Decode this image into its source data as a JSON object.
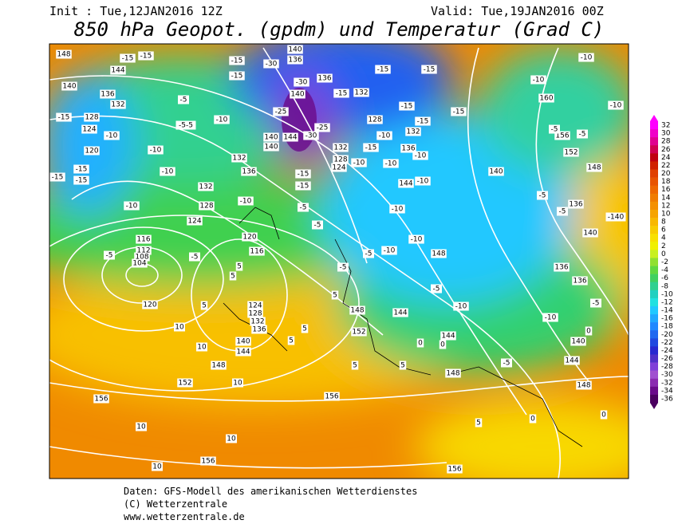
{
  "header": {
    "init": "Init : Tue,12JAN2016 12Z",
    "valid": "Valid: Tue,19JAN2016 00Z",
    "title": "850 hPa Geopot. (gpdm) und Temperatur (Grad C)"
  },
  "colorbar": {
    "ticks": [
      32,
      30,
      28,
      26,
      24,
      22,
      20,
      18,
      16,
      14,
      12,
      10,
      8,
      6,
      4,
      2,
      0,
      -2,
      -4,
      -6,
      -8,
      -10,
      -12,
      -14,
      -16,
      -18,
      -20,
      -22,
      -24,
      -26,
      -28,
      -30,
      -32,
      -34,
      -36
    ],
    "colors": [
      "#ff00ff",
      "#f000c8",
      "#e00090",
      "#d00050",
      "#c00010",
      "#d02000",
      "#e04000",
      "#e85400",
      "#ee6800",
      "#f07c00",
      "#f49000",
      "#f6a400",
      "#f8b800",
      "#f8cc00",
      "#f8e000",
      "#f0f000",
      "#c8f020",
      "#90e030",
      "#60d840",
      "#40d060",
      "#30d090",
      "#20d0c0",
      "#20e0e0",
      "#20c8ff",
      "#20a8ff",
      "#2088ff",
      "#2068f0",
      "#2048e0",
      "#2828d0",
      "#5030c8",
      "#8040d8",
      "#a050d0",
      "#8a2ab0",
      "#6a0a8a",
      "#4b0060"
    ]
  },
  "map_labels": [
    "148",
    "144",
    "140",
    "136",
    "132",
    "128",
    "124",
    "120",
    "116",
    "112",
    "108",
    "104",
    "120",
    "132",
    "128",
    "124",
    "120",
    "116",
    "124",
    "128",
    "132",
    "136",
    "140",
    "144",
    "148",
    "152",
    "156",
    "156",
    "156",
    "156",
    "152",
    "148",
    "144",
    "148",
    "140",
    "152",
    "156",
    "160",
    "148",
    "136",
    "140",
    "136",
    "136",
    "140",
    "144",
    "148",
    "148",
    "144",
    "140",
    "136",
    "136",
    "140",
    "132",
    "128",
    "132",
    "136",
    "132",
    "128",
    "124",
    "144",
    "132",
    "136",
    "144",
    "140",
    "140",
    "-15",
    "-15",
    "-15",
    "-15",
    "-5",
    "-5-5",
    "-10",
    "-15",
    "-10",
    "-10",
    "-10",
    "-15",
    "-15",
    "-15",
    "-10",
    "-5",
    "-5",
    "5",
    "5",
    "5",
    "10",
    "10",
    "10",
    "10",
    "10",
    "10",
    "-5",
    "-5",
    "5",
    "5",
    "5",
    "5",
    "5",
    "0",
    "0",
    "5",
    "-5",
    "0",
    "0",
    "0",
    "-5",
    "-10",
    "-10",
    "-5",
    "-10",
    "-10",
    "-10",
    "-10",
    "-10",
    "-10",
    "-10",
    "-15",
    "-15",
    "-15",
    "-15",
    "-15",
    "-15",
    "-15",
    "-15",
    "-5",
    "-5",
    "-10",
    "-15",
    "-10",
    "-5",
    "-5",
    "-5",
    "-5",
    "-10",
    "-10",
    "-10",
    "-140",
    "-25",
    "-25",
    "-30",
    "-30",
    "-30"
  ],
  "footer": {
    "line1": "Daten: GFS-Modell des amerikanischen Wetterdienstes",
    "line2": "(C) Wetterzentrale",
    "line3": "www.wetterzentrale.de"
  }
}
